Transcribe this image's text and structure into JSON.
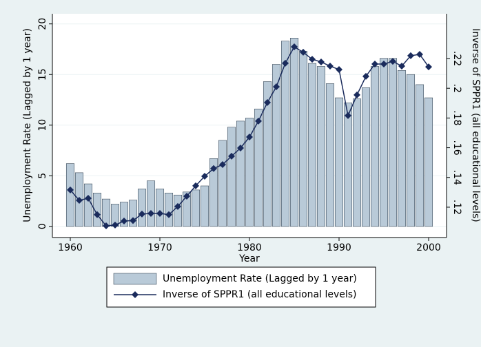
{
  "chart_data": {
    "type": "bar_line",
    "x_label": "Year",
    "y_label": "Unemployment Rate (Lagged by 1 year)",
    "y2_label": "Inverse of SPPR1 (all educational levels)",
    "x": [
      1960,
      1961,
      1962,
      1963,
      1964,
      1965,
      1966,
      1967,
      1968,
      1969,
      1970,
      1971,
      1972,
      1973,
      1974,
      1975,
      1976,
      1977,
      1978,
      1979,
      1980,
      1981,
      1982,
      1983,
      1984,
      1985,
      1986,
      1987,
      1988,
      1989,
      1990,
      1991,
      1992,
      1993,
      1994,
      1995,
      1996,
      1997,
      1998,
      1999,
      2000
    ],
    "xlim": [
      1958,
      2002
    ],
    "xticks": [
      1960,
      1970,
      1980,
      1990,
      2000
    ],
    "ylim": [
      -1.1,
      21
    ],
    "yticks": [
      0,
      5,
      10,
      15,
      20
    ],
    "y2lim": [
      0.0996,
      0.2501
    ],
    "y2ticks": [
      {
        "value": 0.12,
        "label": ".12"
      },
      {
        "value": 0.14,
        "label": ".14"
      },
      {
        "value": 0.16,
        "label": ".16"
      },
      {
        "value": 0.18,
        "label": ".18"
      },
      {
        "value": 0.2,
        "label": ".2"
      },
      {
        "value": 0.22,
        "label": ".22"
      }
    ],
    "grid": true,
    "series": [
      {
        "name": "Unemployment Rate (Lagged by 1 year)",
        "kind": "bar",
        "color": "#b9cad8",
        "values": [
          6.2,
          5.3,
          4.2,
          3.3,
          2.7,
          2.2,
          2.4,
          2.6,
          3.7,
          4.5,
          3.7,
          3.3,
          3.1,
          3.4,
          3.6,
          4.0,
          6.7,
          8.5,
          9.8,
          10.4,
          10.7,
          11.6,
          14.3,
          16.0,
          18.3,
          18.6,
          17.3,
          16.1,
          15.8,
          14.1,
          12.7,
          12.2,
          12.6,
          13.7,
          15.8,
          16.6,
          16.6,
          15.4,
          15.0,
          14.0,
          12.7
        ]
      },
      {
        "name": "Inverse of SPPR1 (all educational levels)",
        "kind": "line",
        "axis": "y2",
        "color": "#1a2b5c",
        "values": [
          0.1316,
          0.1246,
          0.126,
          0.115,
          0.1075,
          0.108,
          0.1107,
          0.111,
          0.1154,
          0.1158,
          0.1158,
          0.115,
          0.1205,
          0.1274,
          0.1344,
          0.1408,
          0.146,
          0.1487,
          0.1543,
          0.1598,
          0.1672,
          0.1779,
          0.1904,
          0.201,
          0.2168,
          0.2279,
          0.2242,
          0.2195,
          0.2177,
          0.2149,
          0.2126,
          0.1816,
          0.1955,
          0.208,
          0.2163,
          0.2163,
          0.2181,
          0.2149,
          0.2219,
          0.2228,
          0.2144
        ]
      }
    ]
  }
}
